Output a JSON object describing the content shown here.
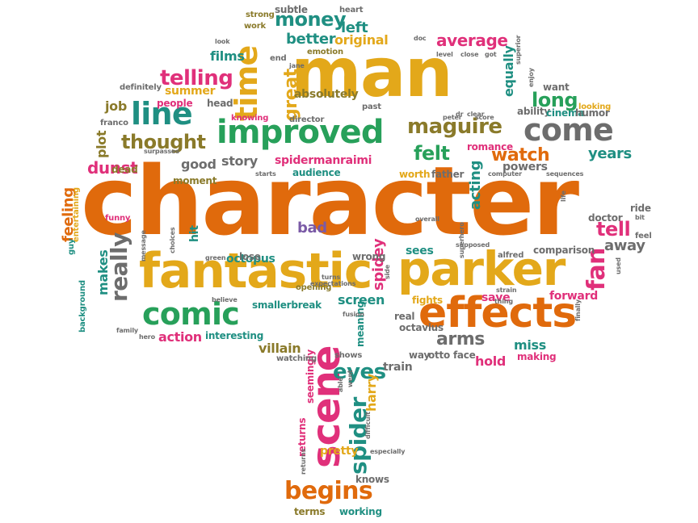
{
  "colors": {
    "orange": "#e06a0c",
    "gold": "#e3a81a",
    "green": "#27a05a",
    "teal": "#1f8f82",
    "pink": "#e0307a",
    "gray": "#6d6d6d",
    "olive": "#8a7a2a",
    "purple": "#7a5aa6",
    "brown": "#8a5a1a"
  },
  "words": [
    {
      "text": "character",
      "color": "orange"
    },
    {
      "text": "man",
      "color": "gold"
    },
    {
      "text": "fantastic",
      "color": "gold"
    },
    {
      "text": "parker",
      "color": "gold"
    },
    {
      "text": "effects",
      "color": "orange"
    },
    {
      "text": "comic",
      "color": "green"
    },
    {
      "text": "improved",
      "color": "green"
    },
    {
      "text": "line",
      "color": "teal"
    },
    {
      "text": "come",
      "color": "gray"
    },
    {
      "text": "maguire",
      "color": "olive"
    },
    {
      "text": "time",
      "color": "gold"
    },
    {
      "text": "telling",
      "color": "pink"
    },
    {
      "text": "thought",
      "color": "olive"
    },
    {
      "text": "money",
      "color": "teal"
    },
    {
      "text": "scene",
      "color": "pink"
    },
    {
      "text": "begins",
      "color": "orange"
    },
    {
      "text": "spider",
      "color": "teal"
    },
    {
      "text": "eyes",
      "color": "teal"
    },
    {
      "text": "arms",
      "color": "gray"
    },
    {
      "text": "watch",
      "color": "orange"
    },
    {
      "text": "felt",
      "color": "green"
    },
    {
      "text": "long",
      "color": "green"
    },
    {
      "text": "fan",
      "color": "pink"
    },
    {
      "text": "tell",
      "color": "pink"
    },
    {
      "text": "really",
      "color": "gray"
    },
    {
      "text": "average",
      "color": "pink"
    },
    {
      "text": "better",
      "color": "teal"
    },
    {
      "text": "films",
      "color": "teal"
    },
    {
      "text": "left",
      "color": "teal"
    },
    {
      "text": "original",
      "color": "gold"
    },
    {
      "text": "summer",
      "color": "gold"
    },
    {
      "text": "great",
      "color": "gold"
    },
    {
      "text": "absolutely",
      "color": "olive"
    },
    {
      "text": "equally",
      "color": "teal"
    },
    {
      "text": "years",
      "color": "teal"
    },
    {
      "text": "spidermanraimi",
      "color": "pink"
    },
    {
      "text": "story",
      "color": "gray"
    },
    {
      "text": "good",
      "color": "gray"
    },
    {
      "text": "dunst",
      "color": "pink"
    },
    {
      "text": "plot",
      "color": "olive"
    },
    {
      "text": "job",
      "color": "olive"
    },
    {
      "text": "acting",
      "color": "teal"
    },
    {
      "text": "away",
      "color": "gray"
    },
    {
      "text": "forward",
      "color": "pink"
    },
    {
      "text": "miss",
      "color": "teal"
    },
    {
      "text": "hold",
      "color": "pink"
    },
    {
      "text": "villain",
      "color": "olive"
    },
    {
      "text": "action",
      "color": "pink"
    },
    {
      "text": "makes",
      "color": "teal"
    },
    {
      "text": "feeling",
      "color": "orange"
    },
    {
      "text": "octopus",
      "color": "teal"
    },
    {
      "text": "spidey",
      "color": "pink"
    },
    {
      "text": "screen",
      "color": "teal"
    },
    {
      "text": "bad",
      "color": "purple"
    },
    {
      "text": "hit",
      "color": "teal"
    },
    {
      "text": "harry",
      "color": "gold"
    },
    {
      "text": "pretty",
      "color": "gold"
    },
    {
      "text": "terms",
      "color": "olive"
    },
    {
      "text": "working",
      "color": "teal"
    },
    {
      "text": "knows",
      "color": "gray"
    },
    {
      "text": "returns",
      "color": "pink"
    },
    {
      "text": "seemingly",
      "color": "pink"
    },
    {
      "text": "train",
      "color": "gray"
    },
    {
      "text": "meaning",
      "color": "teal"
    },
    {
      "text": "watching",
      "color": "gray"
    },
    {
      "text": "shows",
      "color": "gray"
    },
    {
      "text": "audience",
      "color": "teal"
    },
    {
      "text": "smallerbreak",
      "color": "teal"
    },
    {
      "text": "interesting",
      "color": "teal"
    },
    {
      "text": "fights",
      "color": "gold"
    },
    {
      "text": "octavius",
      "color": "gray"
    },
    {
      "text": "otto face",
      "color": "gray"
    },
    {
      "text": "making",
      "color": "pink"
    },
    {
      "text": "sees",
      "color": "teal"
    },
    {
      "text": "save",
      "color": "pink"
    },
    {
      "text": "comparison",
      "color": "gray"
    },
    {
      "text": "doctor",
      "color": "gray"
    },
    {
      "text": "ability",
      "color": "gray"
    },
    {
      "text": "cinema",
      "color": "teal"
    },
    {
      "text": "humor",
      "color": "gray"
    },
    {
      "text": "worth",
      "color": "gold"
    },
    {
      "text": "father",
      "color": "gray"
    },
    {
      "text": "romance",
      "color": "pink"
    },
    {
      "text": "moment",
      "color": "olive"
    },
    {
      "text": "background",
      "color": "teal"
    },
    {
      "text": "entertaining",
      "color": "gold"
    },
    {
      "text": "wrong",
      "color": "gray"
    },
    {
      "text": "opening",
      "color": "olive"
    },
    {
      "text": "lose",
      "color": "gray"
    },
    {
      "text": "definitely",
      "color": "gray"
    },
    {
      "text": "people",
      "color": "pink"
    },
    {
      "text": "head",
      "color": "gray"
    },
    {
      "text": "knowing",
      "color": "pink"
    },
    {
      "text": "franco",
      "color": "gray"
    },
    {
      "text": "dead",
      "color": "olive"
    },
    {
      "text": "heart",
      "color": "gray"
    },
    {
      "text": "subtle",
      "color": "gray"
    },
    {
      "text": "strong",
      "color": "olive"
    },
    {
      "text": "work",
      "color": "olive"
    },
    {
      "text": "end",
      "color": "gray"
    },
    {
      "text": "emotion",
      "color": "olive"
    },
    {
      "text": "looking",
      "color": "gold"
    },
    {
      "text": "want",
      "color": "gray"
    },
    {
      "text": "director",
      "color": "gray"
    },
    {
      "text": "past",
      "color": "gray"
    },
    {
      "text": "real",
      "color": "gray"
    },
    {
      "text": "way",
      "color": "gray"
    },
    {
      "text": "ride",
      "color": "gray"
    },
    {
      "text": "feel",
      "color": "gray"
    },
    {
      "text": "funny",
      "color": "pink"
    },
    {
      "text": "guy",
      "color": "teal"
    },
    {
      "text": "green",
      "color": "gray"
    },
    {
      "text": "believe",
      "color": "gray"
    },
    {
      "text": "family",
      "color": "gray"
    },
    {
      "text": "hero",
      "color": "gray"
    },
    {
      "text": "alfred",
      "color": "gray"
    },
    {
      "text": "starts",
      "color": "gray"
    },
    {
      "text": "computer",
      "color": "gray"
    },
    {
      "text": "sequences",
      "color": "gray"
    },
    {
      "text": "strain",
      "color": "gray"
    },
    {
      "text": "superhero",
      "color": "gray"
    },
    {
      "text": "supposed",
      "color": "gray"
    },
    {
      "text": "overall",
      "color": "gray"
    },
    {
      "text": "peter",
      "color": "gray"
    },
    {
      "text": "fusion",
      "color": "gray"
    },
    {
      "text": "score",
      "color": "gray"
    },
    {
      "text": "close",
      "color": "gray"
    },
    {
      "text": "level",
      "color": "gray"
    },
    {
      "text": "got",
      "color": "gray"
    },
    {
      "text": "doc",
      "color": "gray"
    },
    {
      "text": "look",
      "color": "gray"
    },
    {
      "text": "surpasses",
      "color": "gray"
    },
    {
      "text": "dr",
      "color": "gray"
    },
    {
      "text": "clear",
      "color": "gray"
    },
    {
      "text": "jane",
      "color": "gray"
    },
    {
      "text": "thing",
      "color": "gray"
    },
    {
      "text": "returns",
      "color": "gray"
    },
    {
      "text": "message",
      "color": "gray"
    },
    {
      "text": "choices",
      "color": "gray"
    },
    {
      "text": "superior",
      "color": "gray"
    },
    {
      "text": "enjoy",
      "color": "gray"
    },
    {
      "text": "bit",
      "color": "gray"
    },
    {
      "text": "used",
      "color": "gray"
    },
    {
      "text": "able",
      "color": "gray"
    },
    {
      "text": "went",
      "color": "gray"
    },
    {
      "text": "difficult",
      "color": "gray"
    },
    {
      "text": "especially",
      "color": "gray"
    },
    {
      "text": "life",
      "color": "gray"
    },
    {
      "text": "expectations",
      "color": "gray"
    },
    {
      "text": "turns",
      "color": "gray"
    },
    {
      "text": "side",
      "color": "gray"
    },
    {
      "text": "finally",
      "color": "gray"
    },
    {
      "text": "powers",
      "color": "gray"
    },
    {
      "text": "m",
      "color": "teal"
    }
  ]
}
